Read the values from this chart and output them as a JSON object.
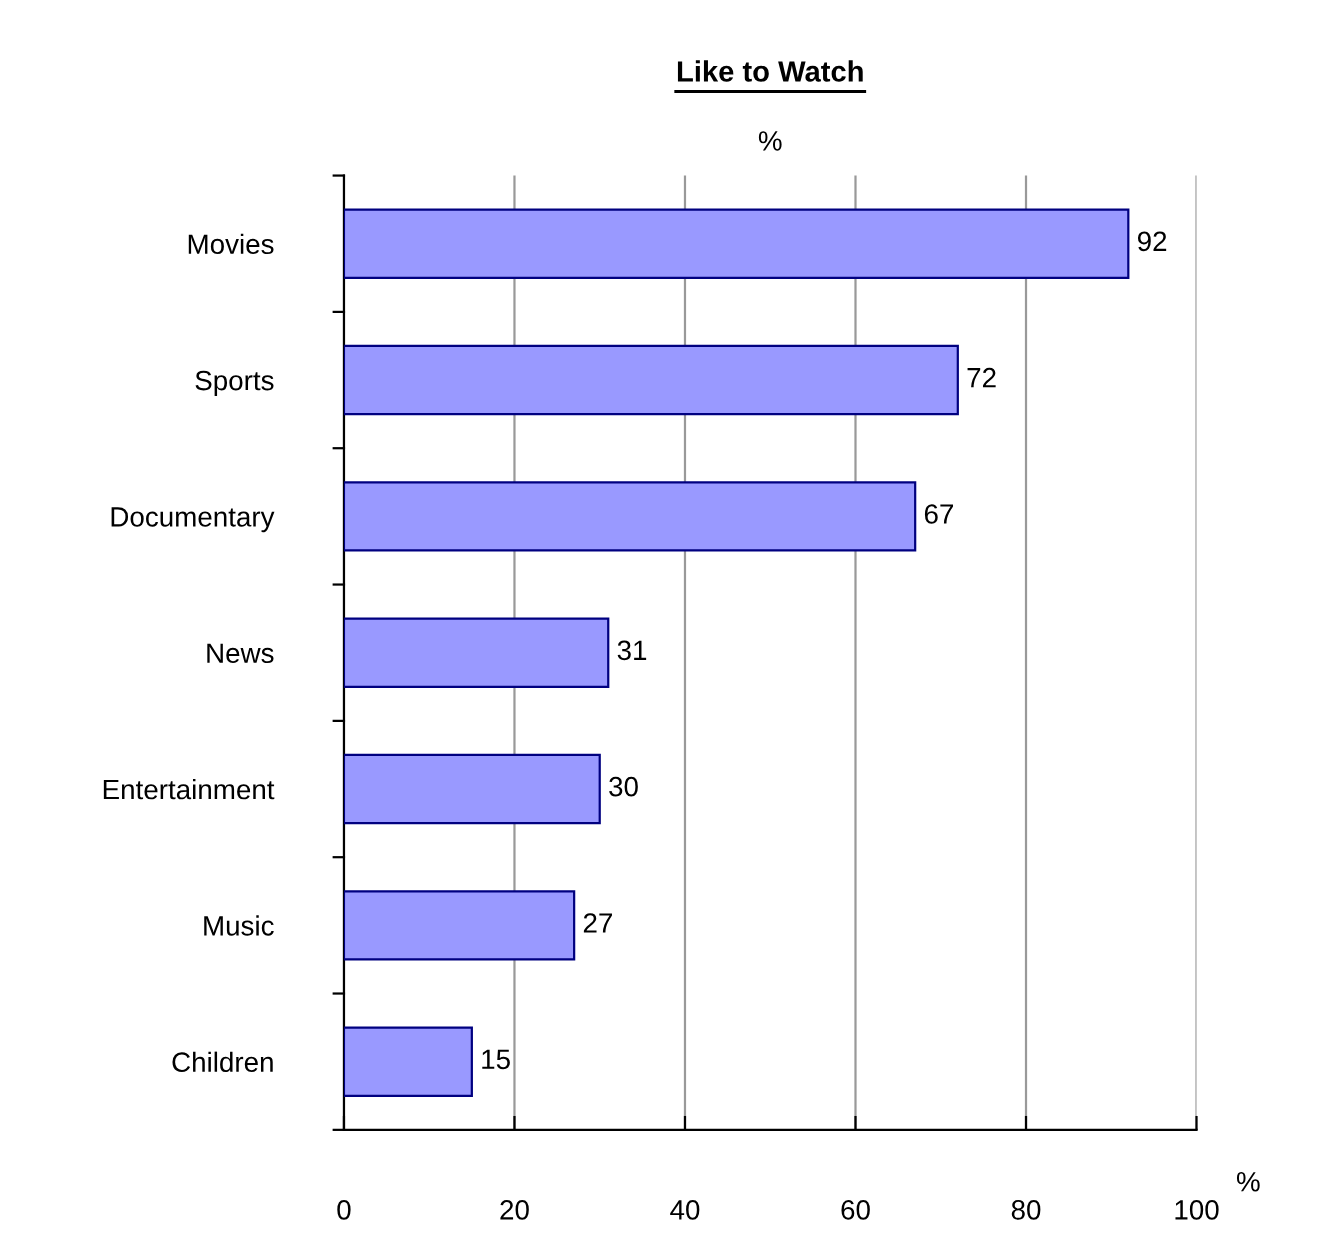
{
  "chart_data": {
    "type": "bar",
    "orientation": "horizontal",
    "title": "Like to Watch",
    "subtitle": "%",
    "xlabel": "%",
    "categories": [
      "Movies",
      "Sports",
      "Documentary",
      "News",
      "Entertainment",
      "Music",
      "Children"
    ],
    "values": [
      92,
      72,
      67,
      31,
      30,
      27,
      15
    ],
    "color": "#9999ff",
    "xlim": [
      0,
      100
    ],
    "xticks": [
      0,
      20,
      40,
      60,
      80,
      100
    ],
    "grid": "x",
    "data_labels": true
  }
}
